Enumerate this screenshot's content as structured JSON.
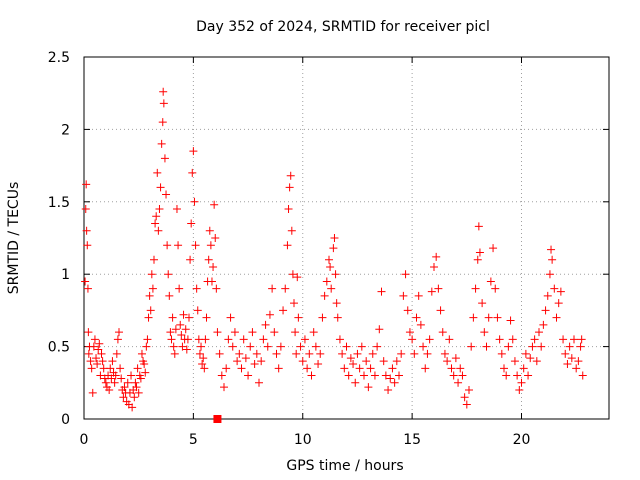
{
  "chart_data": {
    "type": "scatter",
    "title": "Day 352 of 2024, SRMTID for receiver picl",
    "xlabel": "GPS time / hours",
    "ylabel": "SRMTID / TECUs",
    "xlim": [
      0,
      24
    ],
    "ylim": [
      0,
      2.5
    ],
    "xticks": [
      0,
      5,
      10,
      15,
      20
    ],
    "xtick_labels": [
      "0",
      "5",
      "10",
      "15",
      "20"
    ],
    "yticks": [
      0,
      0.5,
      1,
      1.5,
      2,
      2.5
    ],
    "ytick_labels": [
      "0",
      "0.5",
      "1",
      "1.5",
      "2",
      "2.5"
    ],
    "grid": true,
    "marker": "plus",
    "color": "#ff0000",
    "marker_square": {
      "x": 6.1,
      "y": 0.0
    },
    "series": [
      {
        "name": "SRMTID",
        "points": [
          [
            0.05,
            0.95
          ],
          [
            0.08,
            1.45
          ],
          [
            0.1,
            1.62
          ],
          [
            0.12,
            1.3
          ],
          [
            0.15,
            1.2
          ],
          [
            0.18,
            0.9
          ],
          [
            0.2,
            0.6
          ],
          [
            0.22,
            0.45
          ],
          [
            0.25,
            0.5
          ],
          [
            0.3,
            0.4
          ],
          [
            0.35,
            0.35
          ],
          [
            0.4,
            0.18
          ],
          [
            0.45,
            0.5
          ],
          [
            0.5,
            0.55
          ],
          [
            0.55,
            0.42
          ],
          [
            0.6,
            0.38
          ],
          [
            0.65,
            0.48
          ],
          [
            0.7,
            0.52
          ],
          [
            0.75,
            0.3
          ],
          [
            0.8,
            0.45
          ],
          [
            0.85,
            0.4
          ],
          [
            0.9,
            0.35
          ],
          [
            0.95,
            0.28
          ],
          [
            1.0,
            0.25
          ],
          [
            1.05,
            0.22
          ],
          [
            1.1,
            0.3
          ],
          [
            1.15,
            0.2
          ],
          [
            1.2,
            0.35
          ],
          [
            1.25,
            0.28
          ],
          [
            1.3,
            0.4
          ],
          [
            1.35,
            0.32
          ],
          [
            1.4,
            0.25
          ],
          [
            1.45,
            0.3
          ],
          [
            1.5,
            0.45
          ],
          [
            1.55,
            0.55
          ],
          [
            1.6,
            0.6
          ],
          [
            1.65,
            0.35
          ],
          [
            1.7,
            0.28
          ],
          [
            1.75,
            0.2
          ],
          [
            1.8,
            0.15
          ],
          [
            1.85,
            0.22
          ],
          [
            1.9,
            0.18
          ],
          [
            1.95,
            0.12
          ],
          [
            2.0,
            0.25
          ],
          [
            2.05,
            0.1
          ],
          [
            2.1,
            0.18
          ],
          [
            2.15,
            0.3
          ],
          [
            2.2,
            0.08
          ],
          [
            2.25,
            0.2
          ],
          [
            2.3,
            0.15
          ],
          [
            2.35,
            0.25
          ],
          [
            2.4,
            0.22
          ],
          [
            2.45,
            0.35
          ],
          [
            2.5,
            0.18
          ],
          [
            2.55,
            0.3
          ],
          [
            2.6,
            0.28
          ],
          [
            2.65,
            0.45
          ],
          [
            2.7,
            0.4
          ],
          [
            2.75,
            0.38
          ],
          [
            2.8,
            0.32
          ],
          [
            2.85,
            0.5
          ],
          [
            2.9,
            0.55
          ],
          [
            2.95,
            0.7
          ],
          [
            3.0,
            0.85
          ],
          [
            3.05,
            0.75
          ],
          [
            3.1,
            1.0
          ],
          [
            3.15,
            0.9
          ],
          [
            3.2,
            1.1
          ],
          [
            3.25,
            1.35
          ],
          [
            3.3,
            1.4
          ],
          [
            3.35,
            1.7
          ],
          [
            3.4,
            1.3
          ],
          [
            3.45,
            1.45
          ],
          [
            3.5,
            1.6
          ],
          [
            3.55,
            1.9
          ],
          [
            3.6,
            2.05
          ],
          [
            3.62,
            2.26
          ],
          [
            3.65,
            2.18
          ],
          [
            3.7,
            1.8
          ],
          [
            3.75,
            1.55
          ],
          [
            3.8,
            1.2
          ],
          [
            3.85,
            1.0
          ],
          [
            3.9,
            0.85
          ],
          [
            3.95,
            0.6
          ],
          [
            4.0,
            0.55
          ],
          [
            4.05,
            0.7
          ],
          [
            4.1,
            0.5
          ],
          [
            4.15,
            0.45
          ],
          [
            4.2,
            0.62
          ],
          [
            4.25,
            1.45
          ],
          [
            4.3,
            1.2
          ],
          [
            4.35,
            0.9
          ],
          [
            4.4,
            0.65
          ],
          [
            4.45,
            0.58
          ],
          [
            4.5,
            0.5
          ],
          [
            4.55,
            0.72
          ],
          [
            4.6,
            0.55
          ],
          [
            4.65,
            0.62
          ],
          [
            4.7,
            0.48
          ],
          [
            4.75,
            0.55
          ],
          [
            4.8,
            0.7
          ],
          [
            4.85,
            1.1
          ],
          [
            4.9,
            1.35
          ],
          [
            4.95,
            1.7
          ],
          [
            5.0,
            1.85
          ],
          [
            5.05,
            1.5
          ],
          [
            5.1,
            1.2
          ],
          [
            5.15,
            0.9
          ],
          [
            5.2,
            0.75
          ],
          [
            5.25,
            0.55
          ],
          [
            5.3,
            0.45
          ],
          [
            5.35,
            0.5
          ],
          [
            5.4,
            0.38
          ],
          [
            5.45,
            0.42
          ],
          [
            5.5,
            0.35
          ],
          [
            5.55,
            0.55
          ],
          [
            5.6,
            0.7
          ],
          [
            5.65,
            0.95
          ],
          [
            5.7,
            1.1
          ],
          [
            5.75,
            1.3
          ],
          [
            5.8,
            1.2
          ],
          [
            5.85,
            0.95
          ],
          [
            5.9,
            1.05
          ],
          [
            5.95,
            1.48
          ],
          [
            6.0,
            1.25
          ],
          [
            6.05,
            0.9
          ],
          [
            6.1,
            0.6
          ],
          [
            6.2,
            0.45
          ],
          [
            6.3,
            0.3
          ],
          [
            6.4,
            0.22
          ],
          [
            6.5,
            0.35
          ],
          [
            6.6,
            0.55
          ],
          [
            6.7,
            0.7
          ],
          [
            6.8,
            0.5
          ],
          [
            6.9,
            0.6
          ],
          [
            7.0,
            0.4
          ],
          [
            7.1,
            0.45
          ],
          [
            7.2,
            0.35
          ],
          [
            7.3,
            0.55
          ],
          [
            7.4,
            0.42
          ],
          [
            7.5,
            0.3
          ],
          [
            7.6,
            0.5
          ],
          [
            7.7,
            0.6
          ],
          [
            7.8,
            0.38
          ],
          [
            7.9,
            0.45
          ],
          [
            8.0,
            0.25
          ],
          [
            8.1,
            0.4
          ],
          [
            8.2,
            0.55
          ],
          [
            8.3,
            0.65
          ],
          [
            8.4,
            0.5
          ],
          [
            8.5,
            0.72
          ],
          [
            8.6,
            0.9
          ],
          [
            8.7,
            0.6
          ],
          [
            8.8,
            0.45
          ],
          [
            8.9,
            0.35
          ],
          [
            9.0,
            0.5
          ],
          [
            9.1,
            0.75
          ],
          [
            9.2,
            0.9
          ],
          [
            9.3,
            1.2
          ],
          [
            9.35,
            1.45
          ],
          [
            9.4,
            1.6
          ],
          [
            9.45,
            1.68
          ],
          [
            9.5,
            1.3
          ],
          [
            9.55,
            1.0
          ],
          [
            9.6,
            0.8
          ],
          [
            9.65,
            0.6
          ],
          [
            9.7,
            0.45
          ],
          [
            9.75,
            0.98
          ],
          [
            9.8,
            0.7
          ],
          [
            9.9,
            0.5
          ],
          [
            10.0,
            0.4
          ],
          [
            10.1,
            0.55
          ],
          [
            10.2,
            0.35
          ],
          [
            10.3,
            0.45
          ],
          [
            10.4,
            0.3
          ],
          [
            10.5,
            0.6
          ],
          [
            10.6,
            0.5
          ],
          [
            10.7,
            0.38
          ],
          [
            10.8,
            0.45
          ],
          [
            10.9,
            0.7
          ],
          [
            11.0,
            0.85
          ],
          [
            11.1,
            0.95
          ],
          [
            11.2,
            1.1
          ],
          [
            11.25,
            1.05
          ],
          [
            11.3,
            0.9
          ],
          [
            11.4,
            1.18
          ],
          [
            11.45,
            1.25
          ],
          [
            11.5,
            1.0
          ],
          [
            11.55,
            0.8
          ],
          [
            11.6,
            0.7
          ],
          [
            11.7,
            0.55
          ],
          [
            11.8,
            0.45
          ],
          [
            11.9,
            0.35
          ],
          [
            12.0,
            0.5
          ],
          [
            12.1,
            0.3
          ],
          [
            12.2,
            0.42
          ],
          [
            12.3,
            0.38
          ],
          [
            12.4,
            0.25
          ],
          [
            12.5,
            0.45
          ],
          [
            12.6,
            0.35
          ],
          [
            12.7,
            0.5
          ],
          [
            12.8,
            0.3
          ],
          [
            12.9,
            0.4
          ],
          [
            13.0,
            0.22
          ],
          [
            13.1,
            0.35
          ],
          [
            13.2,
            0.45
          ],
          [
            13.3,
            0.3
          ],
          [
            13.4,
            0.5
          ],
          [
            13.5,
            0.62
          ],
          [
            13.6,
            0.88
          ],
          [
            13.7,
            0.4
          ],
          [
            13.8,
            0.3
          ],
          [
            13.9,
            0.2
          ],
          [
            14.0,
            0.28
          ],
          [
            14.1,
            0.35
          ],
          [
            14.2,
            0.25
          ],
          [
            14.3,
            0.4
          ],
          [
            14.4,
            0.3
          ],
          [
            14.5,
            0.45
          ],
          [
            14.6,
            0.85
          ],
          [
            14.7,
            1.0
          ],
          [
            14.8,
            0.75
          ],
          [
            14.9,
            0.6
          ],
          [
            15.0,
            0.55
          ],
          [
            15.1,
            0.45
          ],
          [
            15.2,
            0.7
          ],
          [
            15.3,
            0.85
          ],
          [
            15.4,
            0.65
          ],
          [
            15.5,
            0.5
          ],
          [
            15.6,
            0.35
          ],
          [
            15.7,
            0.45
          ],
          [
            15.8,
            0.55
          ],
          [
            15.9,
            0.88
          ],
          [
            16.0,
            1.05
          ],
          [
            16.1,
            1.12
          ],
          [
            16.2,
            0.9
          ],
          [
            16.3,
            0.75
          ],
          [
            16.4,
            0.6
          ],
          [
            16.5,
            0.45
          ],
          [
            16.6,
            0.4
          ],
          [
            16.7,
            0.55
          ],
          [
            16.8,
            0.35
          ],
          [
            16.9,
            0.3
          ],
          [
            17.0,
            0.42
          ],
          [
            17.1,
            0.25
          ],
          [
            17.2,
            0.35
          ],
          [
            17.3,
            0.3
          ],
          [
            17.4,
            0.15
          ],
          [
            17.5,
            0.1
          ],
          [
            17.6,
            0.2
          ],
          [
            17.7,
            0.5
          ],
          [
            17.8,
            0.7
          ],
          [
            17.9,
            0.9
          ],
          [
            18.0,
            1.1
          ],
          [
            18.05,
            1.33
          ],
          [
            18.1,
            1.15
          ],
          [
            18.2,
            0.8
          ],
          [
            18.3,
            0.6
          ],
          [
            18.4,
            0.5
          ],
          [
            18.5,
            0.7
          ],
          [
            18.6,
            0.95
          ],
          [
            18.7,
            1.18
          ],
          [
            18.8,
            0.9
          ],
          [
            18.9,
            0.7
          ],
          [
            19.0,
            0.55
          ],
          [
            19.1,
            0.45
          ],
          [
            19.2,
            0.35
          ],
          [
            19.3,
            0.3
          ],
          [
            19.4,
            0.5
          ],
          [
            19.5,
            0.68
          ],
          [
            19.6,
            0.55
          ],
          [
            19.7,
            0.4
          ],
          [
            19.8,
            0.3
          ],
          [
            19.9,
            0.2
          ],
          [
            20.0,
            0.25
          ],
          [
            20.1,
            0.35
          ],
          [
            20.2,
            0.45
          ],
          [
            20.3,
            0.3
          ],
          [
            20.4,
            0.42
          ],
          [
            20.5,
            0.5
          ],
          [
            20.6,
            0.55
          ],
          [
            20.7,
            0.4
          ],
          [
            20.8,
            0.6
          ],
          [
            20.9,
            0.5
          ],
          [
            21.0,
            0.65
          ],
          [
            21.1,
            0.75
          ],
          [
            21.2,
            0.85
          ],
          [
            21.3,
            1.0
          ],
          [
            21.35,
            1.17
          ],
          [
            21.4,
            1.1
          ],
          [
            21.5,
            0.9
          ],
          [
            21.6,
            0.7
          ],
          [
            21.7,
            0.8
          ],
          [
            21.8,
            0.88
          ],
          [
            21.9,
            0.55
          ],
          [
            22.0,
            0.45
          ],
          [
            22.1,
            0.38
          ],
          [
            22.2,
            0.5
          ],
          [
            22.3,
            0.42
          ],
          [
            22.4,
            0.55
          ],
          [
            22.5,
            0.35
          ],
          [
            22.6,
            0.4
          ],
          [
            22.7,
            0.5
          ],
          [
            22.75,
            0.55
          ],
          [
            22.8,
            0.3
          ]
        ]
      }
    ]
  }
}
